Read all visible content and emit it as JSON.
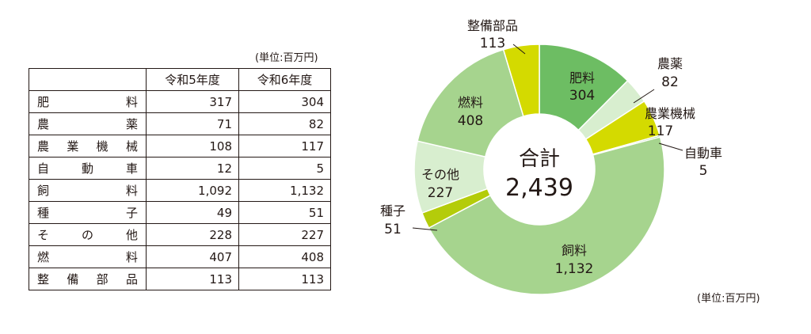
{
  "unit_label": "(単位:百万円)",
  "table": {
    "header": [
      "",
      "令和5年度",
      "令和6年度"
    ],
    "rows": [
      {
        "name": "肥料",
        "r5": "317",
        "r6": "304"
      },
      {
        "name": "農薬",
        "r5": "71",
        "r6": "82"
      },
      {
        "name": "農業機械",
        "r5": "108",
        "r6": "117"
      },
      {
        "name": "自動車",
        "r5": "12",
        "r6": "5"
      },
      {
        "name": "飼料",
        "r5": "1,092",
        "r6": "1,132"
      },
      {
        "name": "種子",
        "r5": "49",
        "r6": "51"
      },
      {
        "name": "その他",
        "r5": "228",
        "r6": "227"
      },
      {
        "name": "燃料",
        "r5": "407",
        "r6": "408"
      },
      {
        "name": "整備部品",
        "r5": "113",
        "r6": "113"
      }
    ]
  },
  "chart_data": {
    "type": "pie",
    "center_label": "合計",
    "total": "2,439",
    "unit": "(単位:百万円)",
    "slices": [
      {
        "name": "肥料",
        "value": 304,
        "value_label": "304",
        "color": "#6dbd63"
      },
      {
        "name": "農薬",
        "value": 82,
        "value_label": "82",
        "color": "#d8eecf"
      },
      {
        "name": "農業機械",
        "value": 117,
        "value_label": "117",
        "color": "#d4da00"
      },
      {
        "name": "自動車",
        "value": 5,
        "value_label": "5",
        "color": "#5aae55"
      },
      {
        "name": "飼料",
        "value": 1132,
        "value_label": "1,132",
        "color": "#a6d48e"
      },
      {
        "name": "種子",
        "value": 51,
        "value_label": "51",
        "color": "#b4cc0a"
      },
      {
        "name": "その他",
        "value": 227,
        "value_label": "227",
        "color": "#d8eecf"
      },
      {
        "name": "燃料",
        "value": 408,
        "value_label": "408",
        "color": "#a6d48e"
      },
      {
        "name": "整備部品",
        "value": 113,
        "value_label": "113",
        "color": "#d4da00"
      }
    ]
  }
}
